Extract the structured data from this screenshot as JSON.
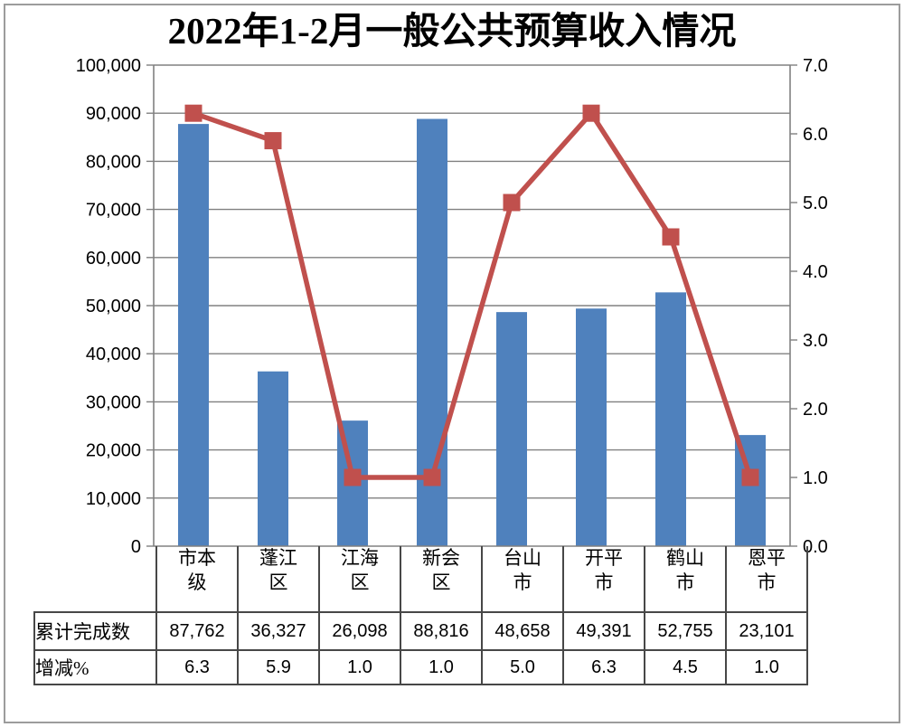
{
  "page": {
    "background": "#FFFFFF",
    "frame_border_color": "#9C9C9C"
  },
  "chart_data": {
    "type": "combo-bar-line",
    "title": "2022年1-2月一般公共预算收入情况",
    "categories": [
      "市本级",
      "蓬江区",
      "江海区",
      "新会区",
      "台山市",
      "开平市",
      "鹤山市",
      "恩平市"
    ],
    "categories_wrapped": [
      "市本\n级",
      "蓬江\n区",
      "江海\n区",
      "新会\n区",
      "台山\n市",
      "开平\n市",
      "鹤山\n市",
      "恩平\n市"
    ],
    "series": [
      {
        "name": "累计完成数",
        "type": "bar",
        "axis": "left",
        "color": "#4F81BD",
        "values": [
          87762,
          36327,
          26098,
          88816,
          48658,
          49391,
          52755,
          23101
        ]
      },
      {
        "name": "增减%",
        "type": "line",
        "axis": "right",
        "color": "#C0504D",
        "values": [
          6.3,
          5.9,
          1.0,
          1.0,
          5.0,
          6.3,
          4.5,
          1.0
        ]
      }
    ],
    "left_axis": {
      "min": 0,
      "max": 100000,
      "step": 10000,
      "tick_labels": [
        "0",
        "10,000",
        "20,000",
        "30,000",
        "40,000",
        "50,000",
        "60,000",
        "70,000",
        "80,000",
        "90,000",
        "100,000"
      ]
    },
    "right_axis": {
      "min": 0,
      "max": 7,
      "step": 1,
      "tick_labels": [
        "0.0",
        "1.0",
        "2.0",
        "3.0",
        "4.0",
        "5.0",
        "6.0",
        "7.0"
      ]
    },
    "grid": true,
    "legend": "none",
    "data_table": {
      "row_labels": [
        "累计完成数",
        "增减%"
      ],
      "rows": [
        [
          "87,762",
          "36,327",
          "26,098",
          "88,816",
          "48,658",
          "49,391",
          "52,755",
          "23,101"
        ],
        [
          "6.3",
          "5.9",
          "1.0",
          "1.0",
          "5.0",
          "6.3",
          "4.5",
          "1.0"
        ]
      ]
    },
    "colors": {
      "bar": "#4F81BD",
      "line": "#C0504D",
      "gridline": "#808080",
      "axis": "#808080",
      "table_border": "#474747",
      "text": "#000000"
    }
  }
}
